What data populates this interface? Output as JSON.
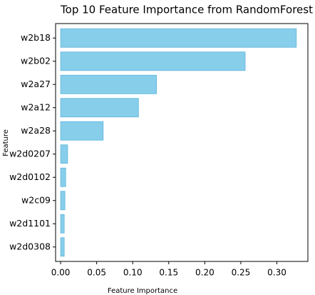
{
  "chart_data": {
    "type": "barh",
    "title": "Top 10 Feature Importance from RandomForest",
    "x_label": "Feature Importance",
    "y_label": "Feature",
    "categories": [
      "w2b18",
      "w2b02",
      "w2a27",
      "w2a12",
      "w2a28",
      "w2d0207",
      "w2d0102",
      "w2c09",
      "w2d1101",
      "w2d0308"
    ],
    "values": [
      0.327,
      0.256,
      0.133,
      0.108,
      0.059,
      0.0097,
      0.007,
      0.006,
      0.005,
      0.005
    ],
    "color": "#87ceeb",
    "edgecolor": "#5fb4dc",
    "xlim": [
      -0.007,
      0.343
    ],
    "xticks": [
      {
        "value": 0,
        "label": "0.00"
      },
      0.05,
      {
        "value": 0.1,
        "label": "0.10"
      },
      0.15,
      {
        "value": 0.2,
        "label": "0.20"
      },
      0.25,
      {
        "value": 0.3,
        "label": "0.30"
      }
    ]
  }
}
